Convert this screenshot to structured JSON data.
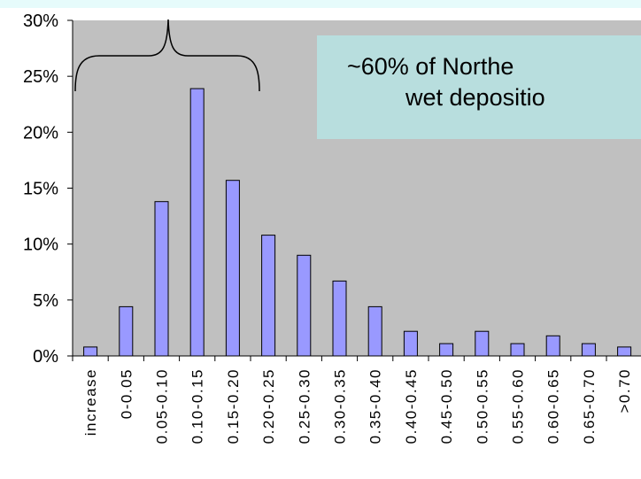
{
  "chart_data": {
    "type": "bar",
    "title": "",
    "xlabel": "",
    "ylabel": "",
    "categories": [
      "increase",
      "0-0.05",
      "0.05-0.10",
      "0.10-0.15",
      "0.15-0.20",
      "0.20-0.25",
      "0.25-0.30",
      "0.30-0.35",
      "0.35-0.40",
      "0.40-0.45",
      "0.45-0.50",
      "0.50-0.55",
      "0.55-0.60",
      "0.60-0.65",
      "0.65-0.70",
      ">0.70"
    ],
    "values": [
      0.8,
      4.4,
      13.8,
      23.9,
      15.7,
      10.8,
      9.0,
      6.7,
      4.4,
      2.2,
      1.1,
      2.2,
      1.1,
      1.8,
      1.1,
      0.8
    ],
    "ylim": [
      0,
      30
    ],
    "yticks": [
      0,
      5,
      10,
      15,
      20,
      25,
      30
    ],
    "ytick_labels": [
      "0%",
      "5%",
      "10%",
      "15%",
      "20%",
      "25%",
      "30%"
    ],
    "grid": false,
    "legend": "none",
    "annotation": {
      "line1": "~60% of Northe",
      "line2": "wet depositio"
    },
    "colors": {
      "plot_background": "#c0c0c0",
      "bar_fill": "#9999ff",
      "bar_stroke": "#000000",
      "callout_background": "#b8dede"
    }
  }
}
